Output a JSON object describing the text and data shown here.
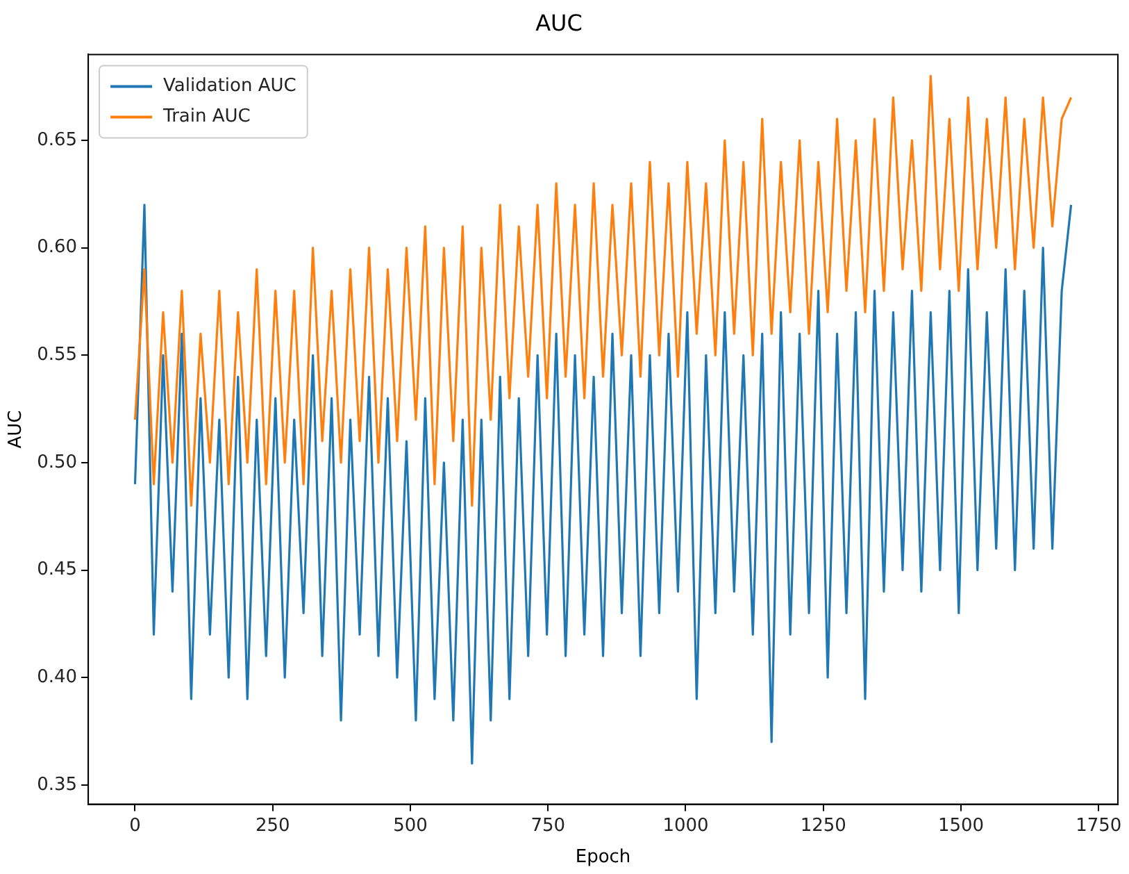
{
  "chart_data": {
    "type": "line",
    "title": "AUC",
    "xlabel": "Epoch",
    "ylabel": "AUC",
    "x": [
      0,
      17,
      34,
      51,
      68,
      85,
      102,
      119,
      136,
      153,
      170,
      187,
      204,
      221,
      238,
      255,
      272,
      289,
      306,
      323,
      340,
      357,
      374,
      391,
      408,
      425,
      442,
      459,
      476,
      493,
      510,
      527,
      544,
      561,
      578,
      595,
      612,
      629,
      646,
      663,
      680,
      697,
      714,
      731,
      748,
      765,
      782,
      799,
      816,
      833,
      850,
      867,
      884,
      901,
      918,
      935,
      952,
      969,
      986,
      1003,
      1020,
      1037,
      1054,
      1071,
      1088,
      1105,
      1122,
      1139,
      1156,
      1173,
      1190,
      1207,
      1224,
      1241,
      1258,
      1275,
      1292,
      1309,
      1326,
      1343,
      1360,
      1377,
      1394,
      1411,
      1428,
      1445,
      1462,
      1479,
      1496,
      1513,
      1530,
      1547,
      1564,
      1581,
      1598,
      1615,
      1632,
      1649,
      1666,
      1683,
      1700
    ],
    "series": [
      {
        "name": "Validation AUC",
        "color": "#1f77b4",
        "values": [
          0.49,
          0.62,
          0.42,
          0.55,
          0.44,
          0.56,
          0.39,
          0.53,
          0.42,
          0.52,
          0.4,
          0.54,
          0.39,
          0.52,
          0.41,
          0.53,
          0.4,
          0.52,
          0.43,
          0.55,
          0.41,
          0.53,
          0.38,
          0.52,
          0.42,
          0.54,
          0.41,
          0.53,
          0.4,
          0.51,
          0.38,
          0.53,
          0.39,
          0.5,
          0.38,
          0.52,
          0.36,
          0.52,
          0.38,
          0.54,
          0.39,
          0.53,
          0.41,
          0.55,
          0.42,
          0.56,
          0.41,
          0.55,
          0.42,
          0.54,
          0.41,
          0.56,
          0.43,
          0.55,
          0.41,
          0.55,
          0.43,
          0.56,
          0.44,
          0.57,
          0.39,
          0.55,
          0.43,
          0.57,
          0.44,
          0.55,
          0.42,
          0.56,
          0.37,
          0.57,
          0.42,
          0.56,
          0.43,
          0.58,
          0.4,
          0.56,
          0.43,
          0.57,
          0.39,
          0.58,
          0.44,
          0.57,
          0.45,
          0.58,
          0.44,
          0.57,
          0.45,
          0.58,
          0.43,
          0.59,
          0.45,
          0.57,
          0.46,
          0.59,
          0.45,
          0.58,
          0.46,
          0.6,
          0.46,
          0.58,
          0.62
        ]
      },
      {
        "name": "Train AUC",
        "color": "#ff7f0e",
        "values": [
          0.52,
          0.59,
          0.49,
          0.57,
          0.5,
          0.58,
          0.48,
          0.56,
          0.5,
          0.58,
          0.49,
          0.57,
          0.5,
          0.59,
          0.49,
          0.58,
          0.5,
          0.58,
          0.49,
          0.6,
          0.51,
          0.58,
          0.5,
          0.59,
          0.51,
          0.6,
          0.5,
          0.59,
          0.51,
          0.6,
          0.52,
          0.61,
          0.49,
          0.6,
          0.51,
          0.61,
          0.48,
          0.6,
          0.52,
          0.62,
          0.53,
          0.61,
          0.54,
          0.62,
          0.53,
          0.63,
          0.54,
          0.62,
          0.53,
          0.63,
          0.54,
          0.62,
          0.55,
          0.63,
          0.54,
          0.64,
          0.55,
          0.63,
          0.54,
          0.64,
          0.56,
          0.63,
          0.55,
          0.65,
          0.56,
          0.64,
          0.55,
          0.66,
          0.56,
          0.64,
          0.57,
          0.65,
          0.56,
          0.64,
          0.57,
          0.66,
          0.58,
          0.65,
          0.57,
          0.66,
          0.58,
          0.67,
          0.59,
          0.65,
          0.58,
          0.68,
          0.59,
          0.66,
          0.58,
          0.67,
          0.59,
          0.66,
          0.6,
          0.67,
          0.59,
          0.66,
          0.6,
          0.67,
          0.61,
          0.66,
          0.67
        ]
      }
    ],
    "xlim": [
      -85,
      1785
    ],
    "xticks": [
      0,
      250,
      500,
      750,
      1000,
      1250,
      1500,
      1750
    ],
    "ylim": [
      0.341,
      0.69
    ],
    "yticks": [
      {
        "value": 0.35,
        "label": "0.35"
      },
      {
        "value": 0.4,
        "label": "0.40"
      },
      {
        "value": 0.45,
        "label": "0.45"
      },
      {
        "value": 0.5,
        "label": "0.50"
      },
      {
        "value": 0.55,
        "label": "0.55"
      },
      {
        "value": 0.6,
        "label": "0.60"
      },
      {
        "value": 0.65,
        "label": "0.65"
      }
    ],
    "legend": "top left",
    "grid": false,
    "marker": "none",
    "line_style": "solid"
  }
}
